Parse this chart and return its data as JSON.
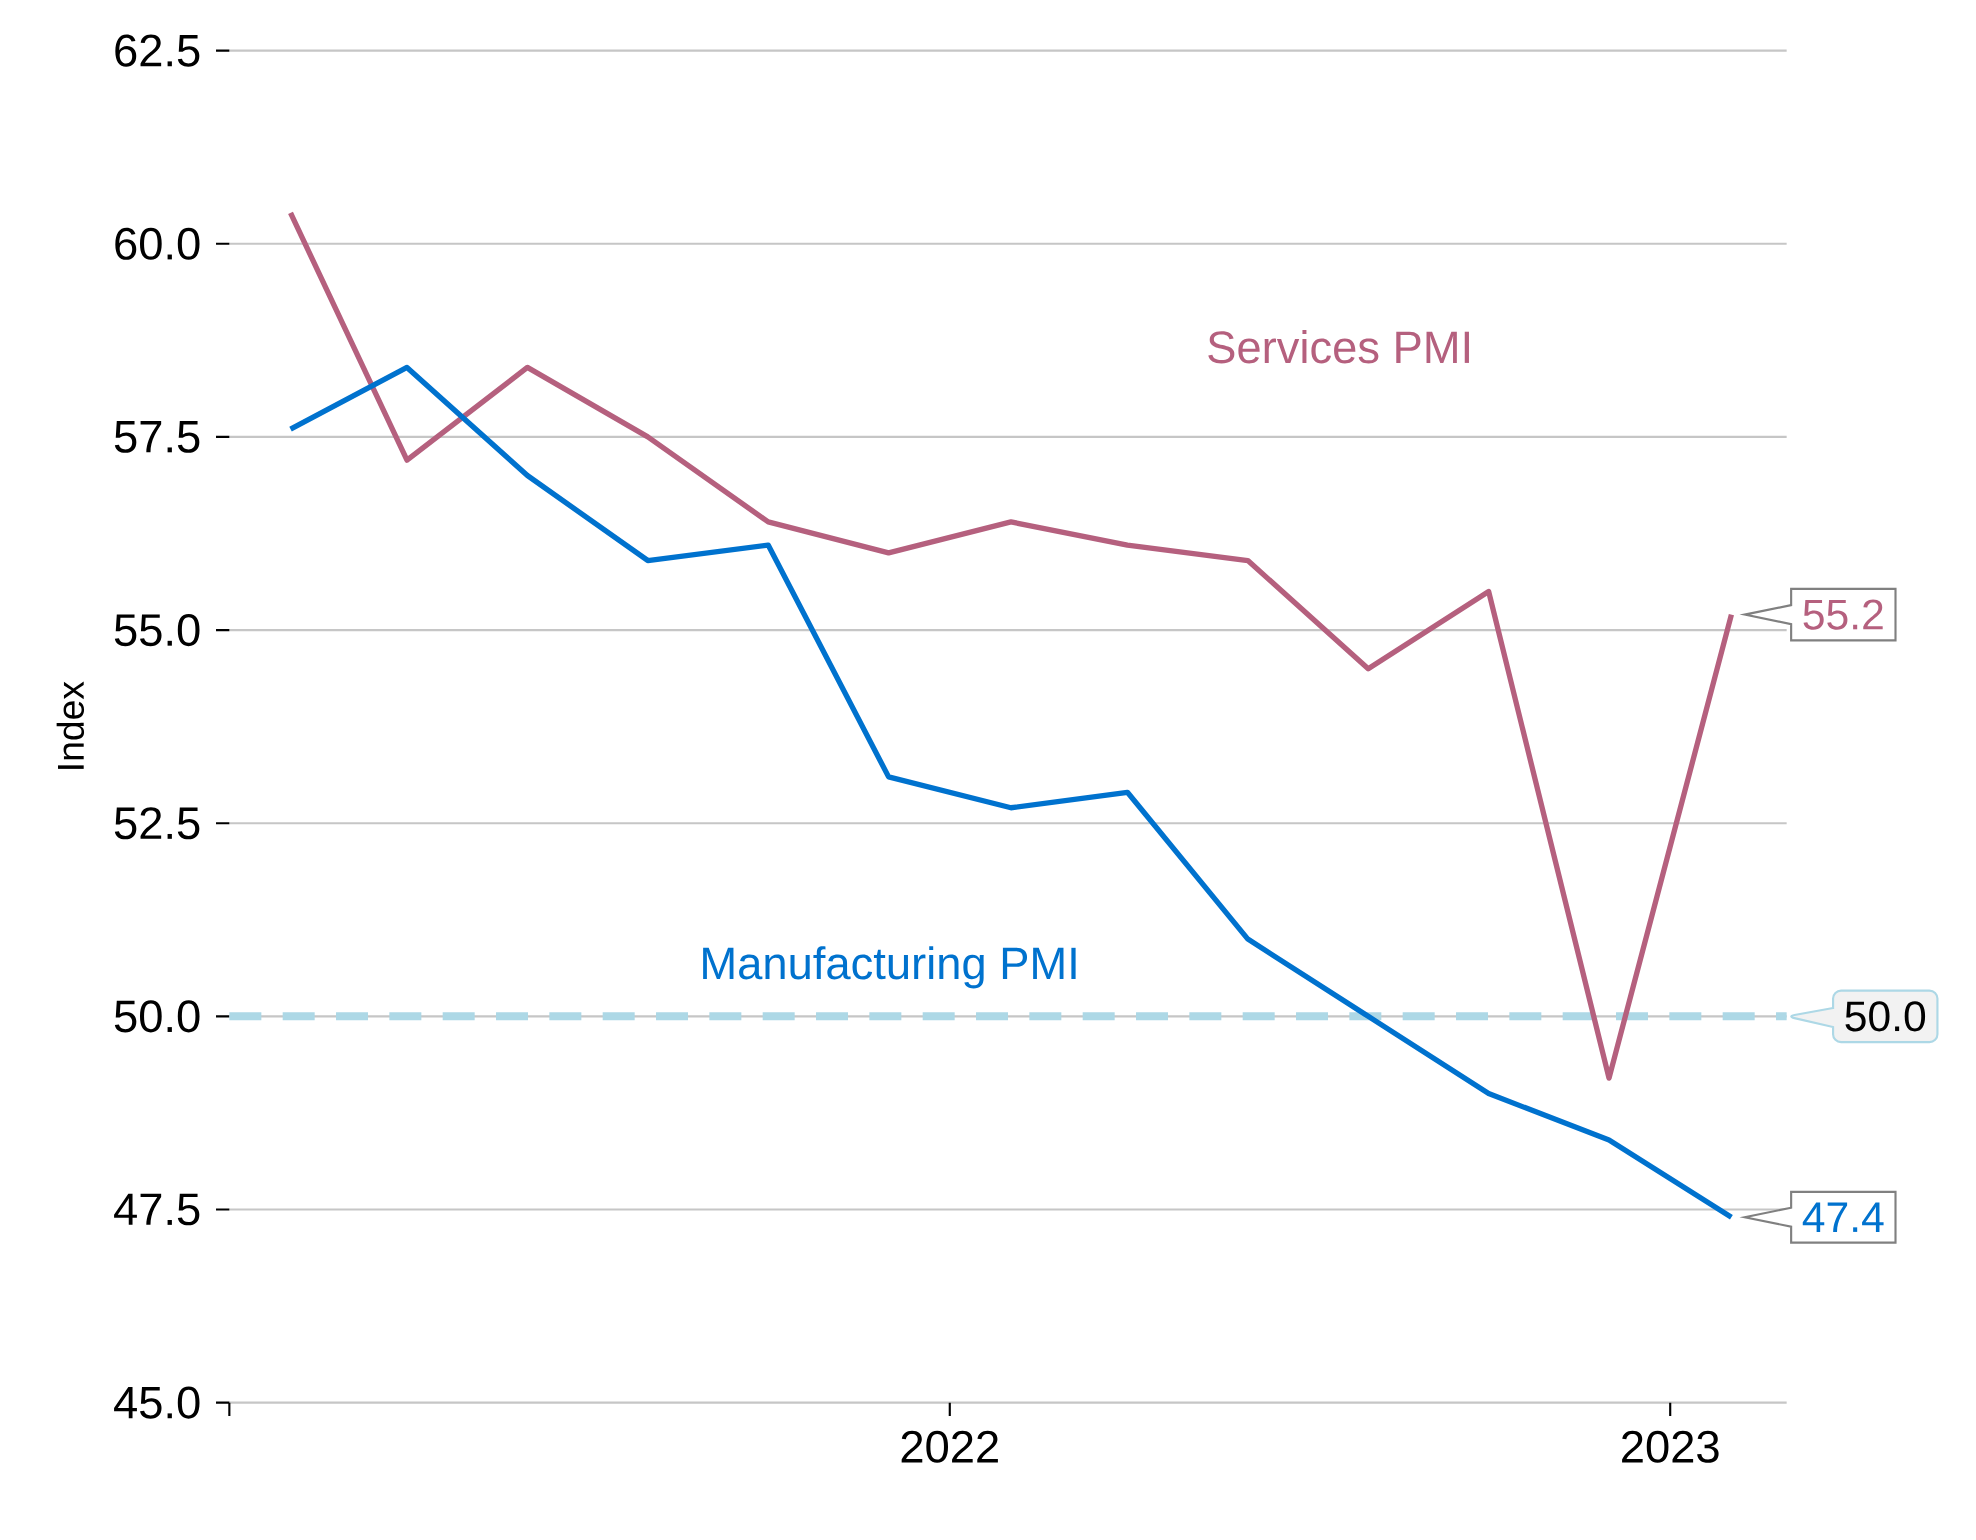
{
  "chart_data": {
    "type": "line",
    "ylabel": "Index",
    "x": [
      "2021-02-01",
      "2021-04-01",
      "2021-06-01",
      "2021-08-01",
      "2021-10-01",
      "2021-12-01",
      "2022-02-01",
      "2022-04-01",
      "2022-06-01",
      "2022-08-01",
      "2022-10-01",
      "2022-12-01",
      "2023-02-01"
    ],
    "series": [
      {
        "name": "Services PMI",
        "color": "#b5607e",
        "values": [
          60.4,
          57.2,
          58.4,
          57.5,
          56.4,
          56.0,
          56.4,
          56.1,
          55.9,
          54.5,
          55.5,
          49.2,
          55.2
        ],
        "value_labels": [
          null,
          null,
          null,
          null,
          null,
          null,
          null,
          null,
          null,
          null,
          null,
          null,
          "55.2"
        ]
      },
      {
        "name": "Manufacturing PMI",
        "color": "#0072ce",
        "values": [
          57.6,
          58.4,
          57.0,
          55.9,
          56.1,
          53.1,
          52.7,
          52.9,
          51.0,
          50.0,
          49.0,
          48.4,
          47.4
        ],
        "value_labels": [
          null,
          null,
          null,
          null,
          null,
          null,
          null,
          null,
          null,
          null,
          null,
          null,
          "47.4"
        ]
      }
    ],
    "xlim": [
      "2021-01-01",
      "2023-03-01"
    ],
    "xticks": [
      {
        "value": "2021-01-01",
        "label": null
      },
      {
        "value": "2022-01-01",
        "label": "2022"
      },
      {
        "value": "2023-01-01",
        "label": "2023"
      }
    ],
    "ylim": [
      45,
      62.5
    ],
    "yticks": [
      {
        "value": 45,
        "label": "45.0"
      },
      {
        "value": 47.5,
        "label": "47.5"
      },
      {
        "value": 50,
        "label": "50.0"
      },
      {
        "value": 52.5,
        "label": "52.5"
      },
      {
        "value": 55,
        "label": "55.0"
      },
      {
        "value": 57.5,
        "label": "57.5"
      },
      {
        "value": 60,
        "label": "60.0"
      },
      {
        "value": 62.5,
        "label": "62.5"
      }
    ],
    "ref_lines": [
      {
        "axis": "y",
        "value": 50,
        "label": "50.0",
        "color": "#add8e6",
        "line_style": "dashed"
      }
    ],
    "grid": "y",
    "marker": "none",
    "line_style": "solid"
  }
}
